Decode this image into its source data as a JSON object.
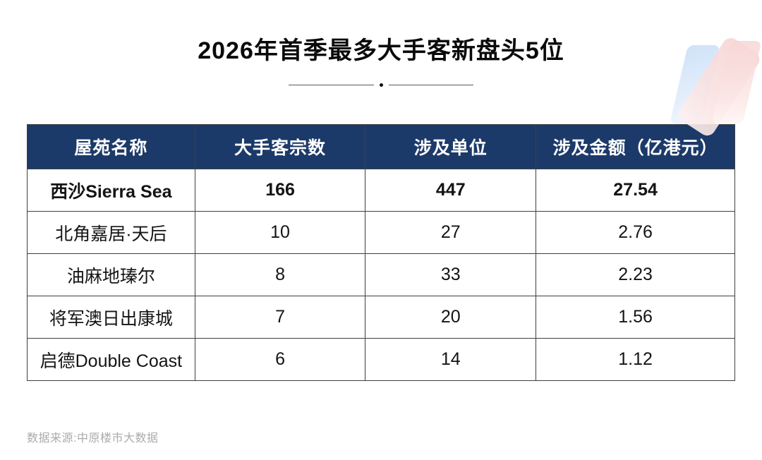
{
  "page": {
    "title": "2026年首季最多大手客新盘头5位",
    "source": "数据来源:中原楼市大数据"
  },
  "colors": {
    "header_bg": "#1c3a69",
    "header_text": "#ffffff",
    "cell_border": "#3f3f3f",
    "source_text": "#ababab",
    "logo_blue": "#cfe2f8",
    "logo_pink": "#f6d2d2"
  },
  "table": {
    "columns": [
      "屋苑名称",
      "大手客宗数",
      "涉及单位",
      "涉及金额（亿港元）"
    ],
    "rows": [
      {
        "name": "西沙Sierra Sea",
        "deals": "166",
        "units": "447",
        "amount": "27.54"
      },
      {
        "name": "北角嘉居·天后",
        "deals": "10",
        "units": "27",
        "amount": "2.76"
      },
      {
        "name": "油麻地瑧尔",
        "deals": "8",
        "units": "33",
        "amount": "2.23"
      },
      {
        "name": "将军澳日出康城",
        "deals": "7",
        "units": "20",
        "amount": "1.56"
      },
      {
        "name": "启德Double Coast",
        "deals": "6",
        "units": "14",
        "amount": "1.12"
      }
    ]
  },
  "chart_data": {
    "type": "table",
    "title": "2026年首季最多大手客新盘头5位",
    "columns": [
      "屋苑名称",
      "大手客宗数",
      "涉及单位",
      "涉及金额（亿港元）"
    ],
    "rows": [
      [
        "西沙Sierra Sea",
        166,
        447,
        27.54
      ],
      [
        "北角嘉居·天后",
        10,
        27,
        2.76
      ],
      [
        "油麻地瑧尔",
        8,
        33,
        2.23
      ],
      [
        "将军澳日出康城",
        7,
        20,
        1.56
      ],
      [
        "启德Double Coast",
        6,
        14,
        1.12
      ]
    ],
    "source": "数据来源:中原楼市大数据",
    "layout_hints": {
      "header_style": "navy background, white bold text",
      "highlight": "first data row rendered bold"
    }
  }
}
